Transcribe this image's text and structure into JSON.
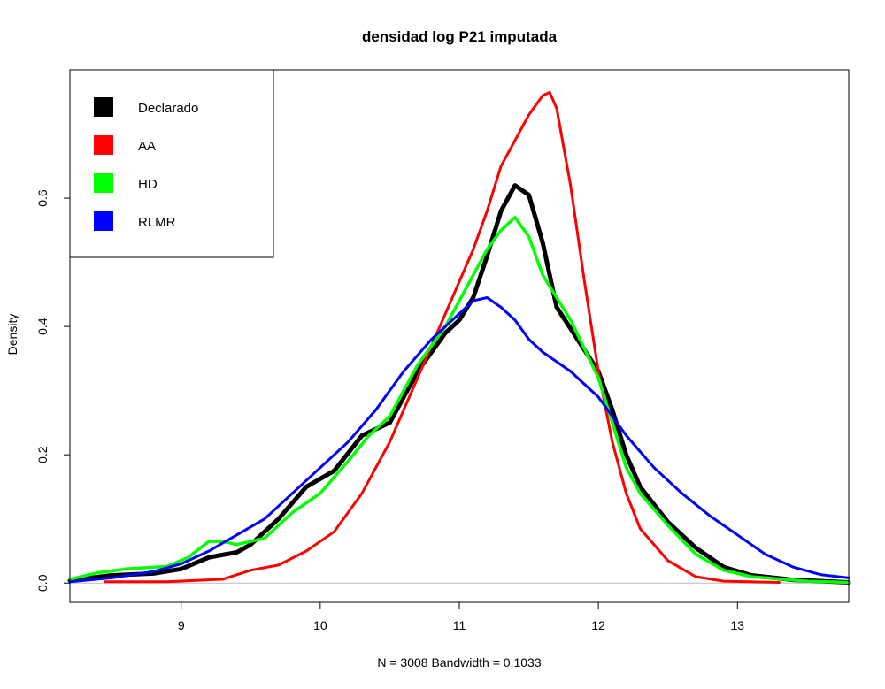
{
  "chart_data": {
    "type": "line",
    "title": "densidad log P21 imputada",
    "xlabel": "N = 3008   Bandwidth = 0.1033",
    "ylabel": "Density",
    "xlim": [
      8.2,
      13.8
    ],
    "ylim": [
      -0.03,
      0.8
    ],
    "x_ticks": [
      9,
      10,
      11,
      12,
      13
    ],
    "y_ticks": [
      0.0,
      0.2,
      0.4,
      0.6
    ],
    "y_tick_labels": [
      "0.0",
      "0.2",
      "0.4",
      "0.6"
    ],
    "legend_position": "top-left",
    "grid": false,
    "baseline": 0,
    "series": [
      {
        "name": "Declarado",
        "color": "#000000",
        "width": 5,
        "points": [
          [
            8.2,
            0.004
          ],
          [
            8.5,
            0.012
          ],
          [
            8.8,
            0.015
          ],
          [
            9.0,
            0.022
          ],
          [
            9.2,
            0.04
          ],
          [
            9.4,
            0.048
          ],
          [
            9.5,
            0.06
          ],
          [
            9.7,
            0.1
          ],
          [
            9.9,
            0.15
          ],
          [
            10.1,
            0.175
          ],
          [
            10.3,
            0.23
          ],
          [
            10.5,
            0.25
          ],
          [
            10.7,
            0.33
          ],
          [
            10.9,
            0.39
          ],
          [
            11.0,
            0.41
          ],
          [
            11.1,
            0.445
          ],
          [
            11.2,
            0.51
          ],
          [
            11.3,
            0.58
          ],
          [
            11.4,
            0.62
          ],
          [
            11.5,
            0.605
          ],
          [
            11.6,
            0.53
          ],
          [
            11.7,
            0.43
          ],
          [
            11.85,
            0.38
          ],
          [
            12.0,
            0.33
          ],
          [
            12.1,
            0.27
          ],
          [
            12.2,
            0.2
          ],
          [
            12.3,
            0.15
          ],
          [
            12.5,
            0.095
          ],
          [
            12.7,
            0.055
          ],
          [
            12.9,
            0.025
          ],
          [
            13.1,
            0.012
          ],
          [
            13.4,
            0.005
          ],
          [
            13.8,
            0.001
          ]
        ]
      },
      {
        "name": "AA",
        "color": "#ff0000",
        "width": 3,
        "points": [
          [
            8.45,
            0.002
          ],
          [
            8.9,
            0.002
          ],
          [
            9.3,
            0.006
          ],
          [
            9.5,
            0.02
          ],
          [
            9.7,
            0.028
          ],
          [
            9.9,
            0.05
          ],
          [
            10.1,
            0.08
          ],
          [
            10.3,
            0.14
          ],
          [
            10.5,
            0.22
          ],
          [
            10.7,
            0.32
          ],
          [
            10.9,
            0.42
          ],
          [
            11.0,
            0.47
          ],
          [
            11.1,
            0.52
          ],
          [
            11.2,
            0.58
          ],
          [
            11.3,
            0.65
          ],
          [
            11.4,
            0.69
          ],
          [
            11.5,
            0.73
          ],
          [
            11.6,
            0.76
          ],
          [
            11.65,
            0.765
          ],
          [
            11.7,
            0.74
          ],
          [
            11.8,
            0.62
          ],
          [
            11.9,
            0.47
          ],
          [
            12.0,
            0.33
          ],
          [
            12.1,
            0.22
          ],
          [
            12.2,
            0.14
          ],
          [
            12.3,
            0.085
          ],
          [
            12.5,
            0.035
          ],
          [
            12.7,
            0.01
          ],
          [
            12.9,
            0.003
          ],
          [
            13.3,
            0.001
          ]
        ]
      },
      {
        "name": "HD",
        "color": "#00ff00",
        "width": 3.5,
        "points": [
          [
            8.2,
            0.006
          ],
          [
            8.4,
            0.016
          ],
          [
            8.6,
            0.022
          ],
          [
            8.9,
            0.026
          ],
          [
            9.05,
            0.04
          ],
          [
            9.2,
            0.065
          ],
          [
            9.3,
            0.065
          ],
          [
            9.4,
            0.06
          ],
          [
            9.6,
            0.07
          ],
          [
            9.8,
            0.11
          ],
          [
            10.0,
            0.14
          ],
          [
            10.2,
            0.19
          ],
          [
            10.35,
            0.23
          ],
          [
            10.5,
            0.26
          ],
          [
            10.7,
            0.34
          ],
          [
            10.9,
            0.4
          ],
          [
            11.0,
            0.44
          ],
          [
            11.1,
            0.48
          ],
          [
            11.2,
            0.52
          ],
          [
            11.3,
            0.55
          ],
          [
            11.4,
            0.57
          ],
          [
            11.5,
            0.54
          ],
          [
            11.6,
            0.48
          ],
          [
            11.8,
            0.41
          ],
          [
            12.0,
            0.32
          ],
          [
            12.1,
            0.25
          ],
          [
            12.2,
            0.18
          ],
          [
            12.3,
            0.14
          ],
          [
            12.5,
            0.09
          ],
          [
            12.7,
            0.045
          ],
          [
            12.9,
            0.02
          ],
          [
            13.1,
            0.01
          ],
          [
            13.5,
            0.003
          ],
          [
            13.8,
            0.001
          ]
        ]
      },
      {
        "name": "RLMR",
        "color": "#0000ff",
        "width": 3,
        "points": [
          [
            8.2,
            0.002
          ],
          [
            8.5,
            0.008
          ],
          [
            8.8,
            0.018
          ],
          [
            9.0,
            0.03
          ],
          [
            9.2,
            0.05
          ],
          [
            9.4,
            0.075
          ],
          [
            9.6,
            0.1
          ],
          [
            9.8,
            0.14
          ],
          [
            10.0,
            0.18
          ],
          [
            10.2,
            0.22
          ],
          [
            10.4,
            0.27
          ],
          [
            10.6,
            0.33
          ],
          [
            10.8,
            0.38
          ],
          [
            11.0,
            0.42
          ],
          [
            11.1,
            0.44
          ],
          [
            11.2,
            0.445
          ],
          [
            11.3,
            0.43
          ],
          [
            11.4,
            0.41
          ],
          [
            11.5,
            0.38
          ],
          [
            11.6,
            0.36
          ],
          [
            11.8,
            0.33
          ],
          [
            12.0,
            0.29
          ],
          [
            12.2,
            0.23
          ],
          [
            12.4,
            0.18
          ],
          [
            12.6,
            0.14
          ],
          [
            12.8,
            0.105
          ],
          [
            13.0,
            0.075
          ],
          [
            13.2,
            0.045
          ],
          [
            13.4,
            0.025
          ],
          [
            13.6,
            0.013
          ],
          [
            13.8,
            0.008
          ]
        ]
      }
    ]
  }
}
